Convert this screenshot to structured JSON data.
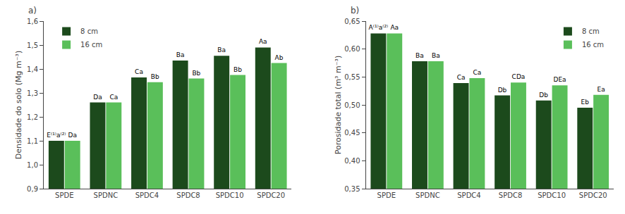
{
  "chart_data": [
    {
      "type": "bar",
      "title": "a)",
      "ylabel": "Densidade do solo (Mg m⁻³)",
      "categories": [
        "SPDE",
        "SPDNC",
        "SPDC4",
        "SPDC8",
        "SPDC10",
        "SPDC20"
      ],
      "series": [
        {
          "name": "8 cm",
          "color": "#1c4a1c",
          "values": [
            1.1,
            1.26,
            1.365,
            1.435,
            1.455,
            1.49
          ],
          "annotations": [
            "E⁽¹⁾a⁽²⁾",
            "Da",
            "Ca",
            "Ba",
            "Ba",
            "Aa"
          ]
        },
        {
          "name": "16 cm",
          "color": "#5abf5a",
          "values": [
            1.1,
            1.26,
            1.345,
            1.36,
            1.375,
            1.425
          ],
          "annotations": [
            "Da",
            "Ca",
            "Bb",
            "Bb",
            "Bb",
            "Ab"
          ]
        }
      ],
      "ylim": [
        0.9,
        1.6
      ],
      "yticks": [
        {
          "value": 0.9,
          "label": "0,9"
        },
        {
          "value": 1.0,
          "label": "1,0"
        },
        {
          "value": 1.1,
          "label": "1,1"
        },
        {
          "value": 1.2,
          "label": "1,2"
        },
        {
          "value": 1.3,
          "label": "1,3"
        },
        {
          "value": 1.4,
          "label": "1,4"
        },
        {
          "value": 1.5,
          "label": "1,5"
        },
        {
          "value": 1.6,
          "label": "1,6"
        }
      ],
      "grid": false,
      "legend": "upper left"
    },
    {
      "type": "bar",
      "title": "b)",
      "ylabel": "Porosidade total (m³ m⁻³)",
      "categories": [
        "SPDE",
        "SPDNC",
        "SPDC4",
        "SPDC8",
        "SPDC10",
        "SPDC20"
      ],
      "series": [
        {
          "name": "8 cm",
          "color": "#1c4a1c",
          "values": [
            0.628,
            0.578,
            0.539,
            0.517,
            0.508,
            0.495
          ],
          "annotations": [
            "A⁽¹⁾a⁽²⁾",
            "Ba",
            "Ca",
            "Db",
            "Db",
            "Eb"
          ]
        },
        {
          "name": "16 cm",
          "color": "#5abf5a",
          "values": [
            0.628,
            0.578,
            0.548,
            0.54,
            0.535,
            0.518
          ],
          "annotations": [
            "Aa",
            "Ba",
            "Ca",
            "CDa",
            "DEa",
            "Ea"
          ]
        }
      ],
      "ylim": [
        0.35,
        0.65
      ],
      "yticks": [
        {
          "value": 0.35,
          "label": "0,35"
        },
        {
          "value": 0.4,
          "label": "0,40"
        },
        {
          "value": 0.45,
          "label": "0,45"
        },
        {
          "value": 0.5,
          "label": "0,50"
        },
        {
          "value": 0.55,
          "label": "0,55"
        },
        {
          "value": 0.6,
          "label": "0,60"
        },
        {
          "value": 0.65,
          "label": "0,65"
        }
      ],
      "grid": false,
      "legend": "upper right"
    }
  ]
}
